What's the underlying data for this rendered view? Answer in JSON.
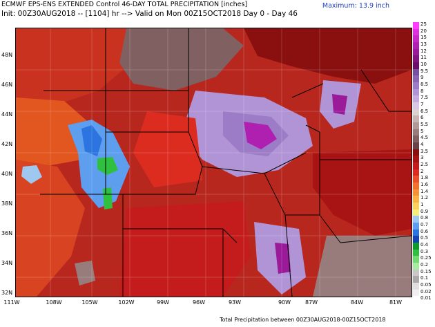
{
  "header": {
    "title": "ECMWF EPS-ENS EXTENDED Control 46-DAY TOTAL PRECIPITATION [inches]",
    "subtitle": "Init: 00Z30AUG2018 -- [1104] hr --> Valid on Mon 00Z15OCT2018   Day 0 - Day 46",
    "maximum": "Maximum: 13.9 inch"
  },
  "footer": "Total Precipitation between 00Z30AUG2018-00Z15OCT2018",
  "map": {
    "lat_labels": [
      "48N",
      "46N",
      "44N",
      "42N",
      "40N",
      "38N",
      "36N",
      "34N",
      "32N"
    ],
    "lon_labels": [
      "111W",
      "108W",
      "105W",
      "102W",
      "99W",
      "96W",
      "93W",
      "90W",
      "87W",
      "84W",
      "81W"
    ]
  },
  "legend": [
    {
      "label": "25",
      "color": "#ff3cff"
    },
    {
      "label": "20",
      "color": "#e030e0"
    },
    {
      "label": "15",
      "color": "#c828c8"
    },
    {
      "label": "13",
      "color": "#b020b0"
    },
    {
      "label": "12",
      "color": "#9a1a9a"
    },
    {
      "label": "11",
      "color": "#821482"
    },
    {
      "label": "10",
      "color": "#6a0e6a"
    },
    {
      "label": "9.5",
      "color": "#7850a0"
    },
    {
      "label": "9",
      "color": "#8a66b4"
    },
    {
      "label": "8.5",
      "color": "#9c7cc6"
    },
    {
      "label": "8",
      "color": "#b094d6"
    },
    {
      "label": "7.5",
      "color": "#c4acdf"
    },
    {
      "label": "7",
      "color": "#d8c8e8"
    },
    {
      "label": "6.5",
      "color": "#ddd2d2"
    },
    {
      "label": "6",
      "color": "#c6b4b4"
    },
    {
      "label": "5.5",
      "color": "#b09898"
    },
    {
      "label": "5",
      "color": "#987c7c"
    },
    {
      "label": "4.5",
      "color": "#806060"
    },
    {
      "label": "4",
      "color": "#6a4444"
    },
    {
      "label": "3.5",
      "color": "#8a1010"
    },
    {
      "label": "3",
      "color": "#a81414"
    },
    {
      "label": "2.5",
      "color": "#c41c1c"
    },
    {
      "label": "2",
      "color": "#dc2c20"
    },
    {
      "label": "1.8",
      "color": "#ec5026"
    },
    {
      "label": "1.6",
      "color": "#f4722c"
    },
    {
      "label": "1.4",
      "color": "#f89236"
    },
    {
      "label": "1.2",
      "color": "#fcb244"
    },
    {
      "label": "1",
      "color": "#fcd05a"
    },
    {
      "label": "0.9",
      "color": "#f4ee78"
    },
    {
      "label": "0.8",
      "color": "#9ec8f0"
    },
    {
      "label": "0.7",
      "color": "#5e9eee"
    },
    {
      "label": "0.6",
      "color": "#2c74e0"
    },
    {
      "label": "0.5",
      "color": "#1444b4"
    },
    {
      "label": "0.4",
      "color": "#0c9a2c"
    },
    {
      "label": "0.3",
      "color": "#30c040"
    },
    {
      "label": "0.25",
      "color": "#70dc70"
    },
    {
      "label": "0.2",
      "color": "#a8eca0"
    },
    {
      "label": "0.15",
      "color": "#c8c8c8"
    },
    {
      "label": "0.1",
      "color": "#aaaaaa"
    },
    {
      "label": "0.05",
      "color": "#e0e0e0"
    },
    {
      "label": "0.02",
      "color": "#f0f0f0"
    },
    {
      "label": "0.01",
      "color": "#ffffff"
    }
  ]
}
